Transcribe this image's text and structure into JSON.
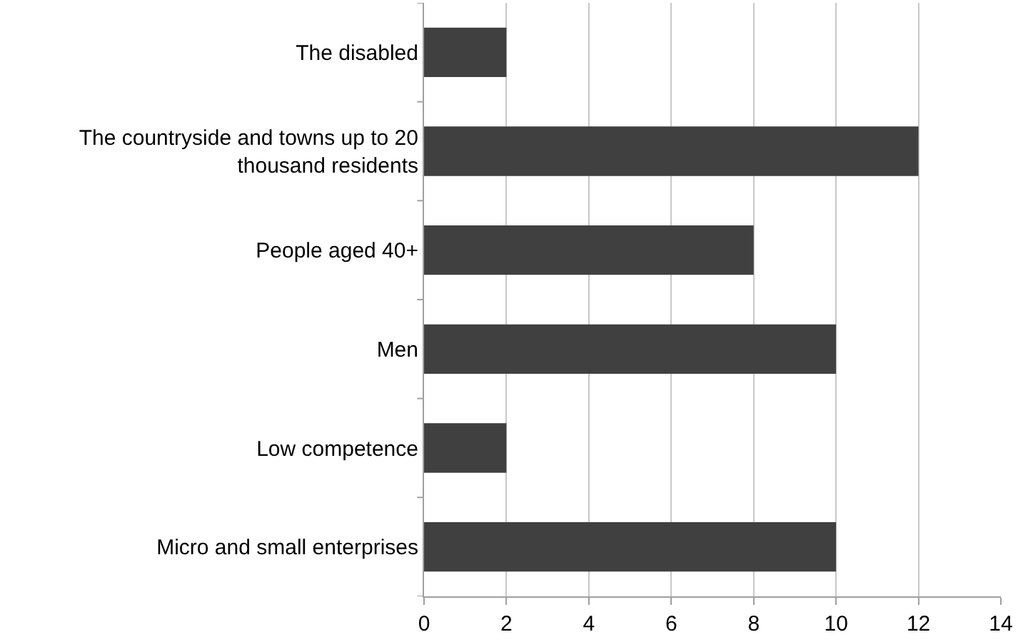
{
  "chart_data": {
    "type": "bar",
    "orientation": "horizontal",
    "categories": [
      "The disabled",
      "The countryside and towns up to 20 thousand residents",
      "People aged 40+",
      "Men",
      "Low competence",
      "Micro and small enterprises"
    ],
    "values": [
      2,
      12,
      8,
      10,
      2,
      10
    ],
    "color": "#404040",
    "xlim": [
      0,
      14
    ],
    "xticks": [
      0,
      2,
      4,
      6,
      8,
      10,
      12,
      14
    ],
    "grid": "x",
    "legend": false
  }
}
